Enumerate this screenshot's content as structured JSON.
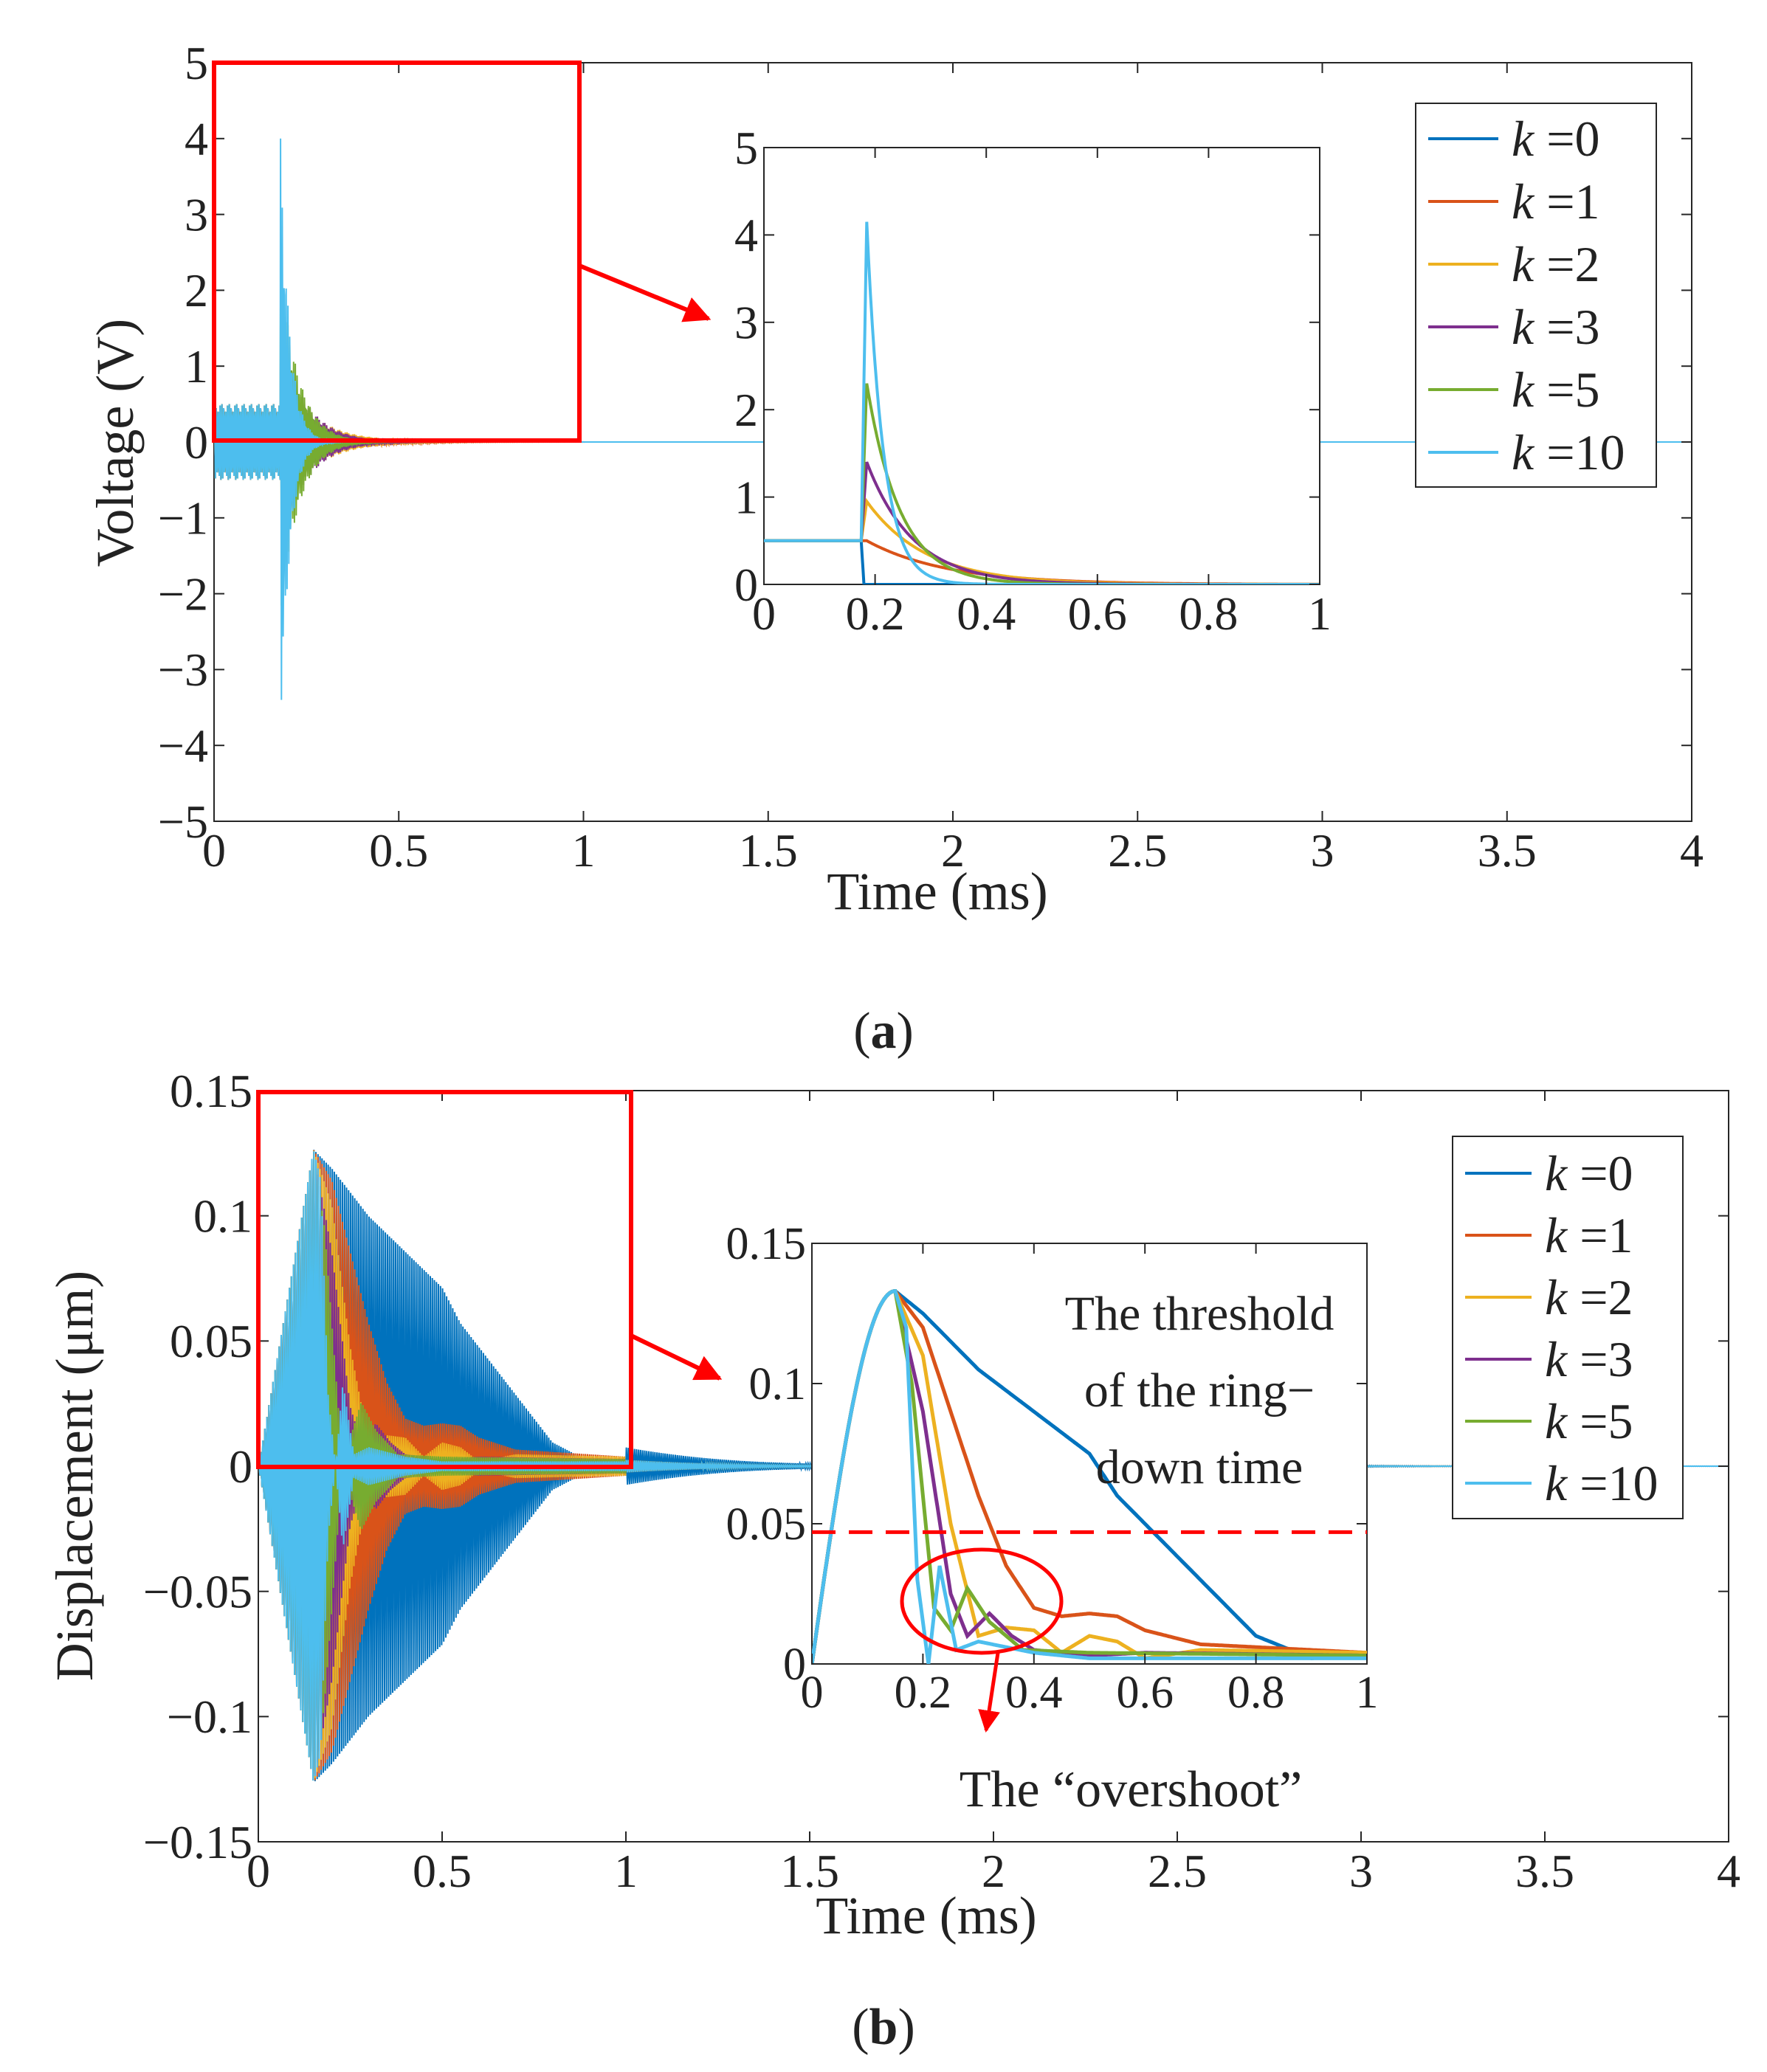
{
  "colors": {
    "k0": "#0072BD",
    "k1": "#D95319",
    "k2": "#EDB120",
    "k3": "#7E2F8E",
    "k5": "#77AC30",
    "k10": "#4DBEEE",
    "highlight": "#FF0000",
    "axis": "#262626"
  },
  "panels": [
    {
      "id": "a",
      "caption_open": "(",
      "caption_letter": "a",
      "caption_close": ")",
      "xlabel": "Time (ms)",
      "ylabel": "Voltage (V)",
      "xticks": [
        "0",
        "0.5",
        "1",
        "1.5",
        "2",
        "2.5",
        "3",
        "3.5",
        "4"
      ],
      "yticks": [
        "5",
        "4",
        "3",
        "2",
        "1",
        "0",
        "−1",
        "−2",
        "−3",
        "−4",
        "−5"
      ],
      "legend": [
        {
          "k": "k",
          "label": " =0"
        },
        {
          "k": "k",
          "label": " =1"
        },
        {
          "k": "k",
          "label": " =2"
        },
        {
          "k": "k",
          "label": " =3"
        },
        {
          "k": "k",
          "label": " =5"
        },
        {
          "k": "k",
          "label": " =10"
        }
      ],
      "inset": {
        "xticks": [
          "0",
          "0.2",
          "0.4",
          "0.6",
          "0.8",
          "1"
        ],
        "yticks": [
          "5",
          "4",
          "3",
          "2",
          "1",
          "0"
        ]
      }
    },
    {
      "id": "b",
      "caption_open": "(",
      "caption_letter": "b",
      "caption_close": ")",
      "xlabel": "Time (ms)",
      "ylabel": "Displacement (μm)",
      "xticks": [
        "0",
        "0.5",
        "1",
        "1.5",
        "2",
        "2.5",
        "3",
        "3.5",
        "4"
      ],
      "yticks": [
        "0.15",
        "0.1",
        "0.05",
        "0",
        "−0.05",
        "−0.1",
        "−0.15"
      ],
      "legend": [
        {
          "k": "k",
          "label": " =0"
        },
        {
          "k": "k",
          "label": " =1"
        },
        {
          "k": "k",
          "label": " =2"
        },
        {
          "k": "k",
          "label": " =3"
        },
        {
          "k": "k",
          "label": " =5"
        },
        {
          "k": "k",
          "label": " =10"
        }
      ],
      "inset": {
        "xticks": [
          "0",
          "0.2",
          "0.4",
          "0.6",
          "0.8",
          "1"
        ],
        "yticks": [
          "0.15",
          "0.1",
          "0.05",
          "0"
        ]
      },
      "annotations": {
        "threshold_line1": "The threshold",
        "threshold_line2": "of the ring−",
        "threshold_line3": "down time",
        "overshoot": "The “overshoot”"
      }
    }
  ],
  "chart_data": [
    {
      "type": "line",
      "title": "",
      "xlabel": "Time (ms)",
      "ylabel": "Voltage (V)",
      "xlim": [
        0,
        4
      ],
      "ylim": [
        -5,
        5
      ],
      "series_names": [
        "k =0",
        "k =1",
        "k =2",
        "k =3",
        "k =5",
        "k =10"
      ],
      "drive_amplitude": 0.5,
      "drive_end_ms": 0.18,
      "peak_voltage": {
        "k =0": 0.0,
        "k =1": 0.5,
        "k =2": 0.95,
        "k =3": 1.4,
        "k =5": 2.3,
        "k =10": 4.0
      },
      "negative_peak_k10": -3.4,
      "zoom_region": {
        "x": [
          0,
          1
        ],
        "y": [
          0,
          5
        ]
      },
      "inset": {
        "xlim": [
          0,
          1
        ],
        "ylim": [
          0,
          5
        ],
        "envelope_peaks": {
          "k =0": 0.0,
          "k =1": 0.5,
          "k =2": 0.95,
          "k =3": 1.4,
          "k =5": 2.3,
          "k =10": 4.15
        },
        "pre_drive_level": 0.5
      }
    },
    {
      "type": "line",
      "title": "",
      "xlabel": "Time (ms)",
      "ylabel": "Displacement (μm)",
      "xlim": [
        0,
        4
      ],
      "ylim": [
        -0.15,
        0.15
      ],
      "series_names": [
        "k =0",
        "k =1",
        "k =2",
        "k =3",
        "k =5",
        "k =10"
      ],
      "peak_displacement": 0.133,
      "peak_time_ms": 0.15,
      "zoom_region": {
        "x": [
          0,
          1
        ],
        "y": [
          0,
          0.15
        ]
      },
      "inset": {
        "xlim": [
          0,
          1
        ],
        "ylim": [
          0,
          0.15
        ],
        "threshold": 0.047,
        "envelopes": {
          "k =0": {
            "x": [
              0,
              0.15,
              0.2,
              0.3,
              0.4,
              0.5,
              0.55,
              0.6,
              0.7,
              0.8,
              0.9,
              1.0
            ],
            "y": [
              0,
              0.133,
              0.125,
              0.105,
              0.09,
              0.075,
              0.06,
              0.05,
              0.03,
              0.01,
              0.002,
              0.004
            ]
          },
          "k =1": {
            "x": [
              0,
              0.15,
              0.2,
              0.25,
              0.3,
              0.35,
              0.4,
              0.45,
              0.5,
              0.55,
              0.6,
              0.7,
              0.8,
              1.0
            ],
            "y": [
              0,
              0.133,
              0.12,
              0.09,
              0.06,
              0.035,
              0.02,
              0.017,
              0.018,
              0.017,
              0.012,
              0.007,
              0.006,
              0.004
            ]
          },
          "k =2": {
            "x": [
              0,
              0.15,
              0.2,
              0.25,
              0.3,
              0.35,
              0.4,
              0.45,
              0.5,
              0.55,
              0.6,
              0.7,
              1.0
            ],
            "y": [
              0,
              0.133,
              0.11,
              0.05,
              0.01,
              0.013,
              0.012,
              0.004,
              0.01,
              0.008,
              0.002,
              0.005,
              0.004
            ]
          },
          "k =3": {
            "x": [
              0,
              0.15,
              0.2,
              0.25,
              0.28,
              0.32,
              0.36,
              0.4,
              0.5,
              0.6,
              1.0
            ],
            "y": [
              0,
              0.133,
              0.09,
              0.025,
              0.01,
              0.018,
              0.01,
              0.005,
              0.003,
              0.004,
              0.003
            ]
          },
          "k =5": {
            "x": [
              0,
              0.15,
              0.18,
              0.22,
              0.25,
              0.28,
              0.32,
              0.38,
              0.5,
              1.0
            ],
            "y": [
              0,
              0.133,
              0.1,
              0.02,
              0.012,
              0.027,
              0.015,
              0.005,
              0.004,
              0.003
            ]
          },
          "k =10": {
            "x": [
              0,
              0.15,
              0.17,
              0.19,
              0.21,
              0.23,
              0.26,
              0.3,
              0.4,
              0.5,
              1.0
            ],
            "y": [
              0,
              0.133,
              0.12,
              0.03,
              0.0,
              0.035,
              0.005,
              0.008,
              0.004,
              0.002,
              0.002
            ]
          }
        }
      }
    }
  ]
}
